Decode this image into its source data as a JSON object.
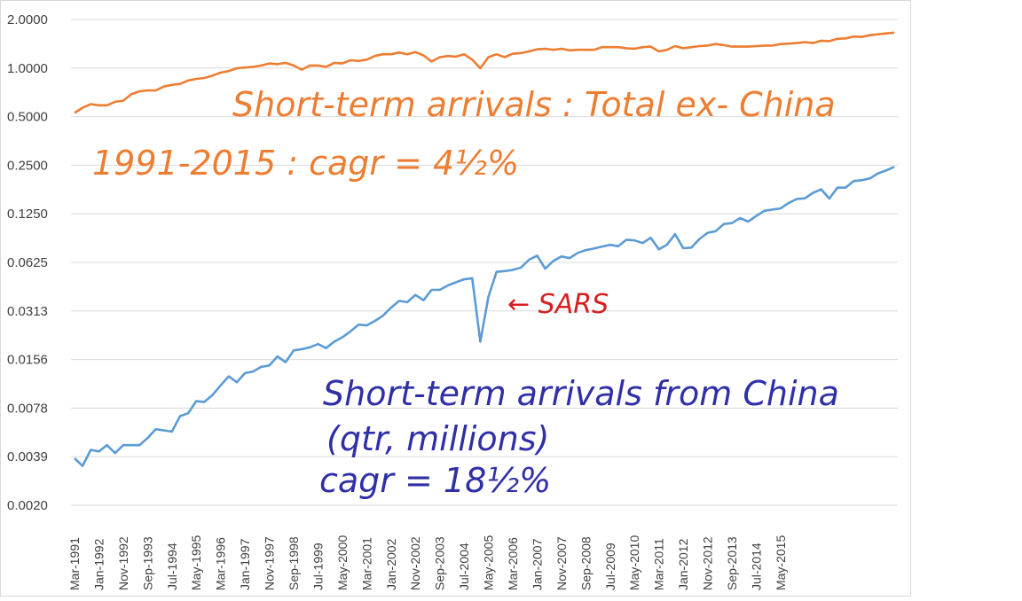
{
  "chart_data": {
    "type": "line",
    "y_scale": "log2",
    "ylim": [
      0.002,
      2.0
    ],
    "ytick_labels": [
      "2.0000",
      "1.0000",
      "0.5000",
      "0.2500",
      "0.1250",
      "0.0625",
      "0.0313",
      "0.0156",
      "0.0078",
      "0.0039",
      "0.0020"
    ],
    "xtick_labels": [
      "Mar-1991",
      "Jan-1992",
      "Nov-1992",
      "Sep-1993",
      "Jul-1994",
      "May-1995",
      "Mar-1996",
      "Jan-1997",
      "Nov-1997",
      "Sep-1998",
      "Jul-1999",
      "May-2000",
      "Mar-2001",
      "Jan-2002",
      "Nov-2002",
      "Sep-2003",
      "Jul-2004",
      "May-2005",
      "Mar-2006",
      "Jan-2007",
      "Nov-2007",
      "Sep-2008",
      "Jul-2009",
      "May-2010",
      "Mar-2011",
      "Jan-2012",
      "Nov-2012",
      "Sep-2013",
      "Jul-2014",
      "May-2015"
    ],
    "x_start": "Mar-1991",
    "x_frequency": "quarterly",
    "grid": true,
    "series": [
      {
        "color": "#ed7d31",
        "values": [
          0.53,
          0.57,
          0.6,
          0.59,
          0.59,
          0.62,
          0.63,
          0.69,
          0.72,
          0.73,
          0.73,
          0.77,
          0.79,
          0.8,
          0.84,
          0.86,
          0.87,
          0.9,
          0.94,
          0.96,
          1.0,
          1.01,
          1.02,
          1.04,
          1.07,
          1.06,
          1.08,
          1.04,
          0.98,
          1.04,
          1.04,
          1.02,
          1.08,
          1.07,
          1.12,
          1.11,
          1.13,
          1.19,
          1.22,
          1.22,
          1.25,
          1.22,
          1.26,
          1.2,
          1.1,
          1.17,
          1.19,
          1.18,
          1.22,
          1.13,
          1.0,
          1.17,
          1.22,
          1.17,
          1.23,
          1.24,
          1.27,
          1.31,
          1.32,
          1.3,
          1.32,
          1.29,
          1.3,
          1.3,
          1.3,
          1.35,
          1.35,
          1.35,
          1.33,
          1.32,
          1.35,
          1.36,
          1.27,
          1.3,
          1.37,
          1.33,
          1.35,
          1.37,
          1.38,
          1.41,
          1.39,
          1.36,
          1.36,
          1.36,
          1.37,
          1.38,
          1.38,
          1.41,
          1.42,
          1.43,
          1.45,
          1.43,
          1.48,
          1.47,
          1.52,
          1.53,
          1.57,
          1.56,
          1.6,
          1.62,
          1.64,
          1.66
        ]
      },
      {
        "color": "#5b9bd5",
        "values": [
          0.0039,
          0.0035,
          0.0044,
          0.0043,
          0.0047,
          0.0042,
          0.0047,
          0.0047,
          0.0047,
          0.0052,
          0.0059,
          0.0058,
          0.0057,
          0.0071,
          0.0074,
          0.0088,
          0.0087,
          0.0096,
          0.011,
          0.0125,
          0.0115,
          0.0131,
          0.0134,
          0.0143,
          0.0146,
          0.0166,
          0.0153,
          0.0181,
          0.0184,
          0.0189,
          0.0198,
          0.0187,
          0.0205,
          0.0218,
          0.0237,
          0.0261,
          0.0258,
          0.0275,
          0.0296,
          0.0332,
          0.0366,
          0.0359,
          0.0398,
          0.0369,
          0.0428,
          0.0428,
          0.0455,
          0.0477,
          0.0497,
          0.0505,
          0.0205,
          0.0389,
          0.0553,
          0.0559,
          0.0568,
          0.0587,
          0.0657,
          0.0696,
          0.0578,
          0.0646,
          0.0688,
          0.0672,
          0.0724,
          0.0754,
          0.077,
          0.0793,
          0.0812,
          0.0796,
          0.0873,
          0.0865,
          0.0832,
          0.0898,
          0.0762,
          0.0813,
          0.0944,
          0.0774,
          0.0781,
          0.0882,
          0.0963,
          0.0986,
          0.1091,
          0.1106,
          0.1188,
          0.1129,
          0.1224,
          0.1318,
          0.1341,
          0.1362,
          0.1473,
          0.1557,
          0.1573,
          0.1701,
          0.1787,
          0.1567,
          0.1831,
          0.1831,
          0.2013,
          0.2035,
          0.2089,
          0.2241,
          0.2337,
          0.2461
        ]
      }
    ],
    "annotations": [
      {
        "text": "Short-term arrivals : Total ex- China",
        "color": "#ed7d31"
      },
      {
        "text": "1991-2015 : cagr = 4½%",
        "color": "#ed7d31"
      },
      {
        "text": "Short-term arrivals from China",
        "color": "#2f2fa8"
      },
      {
        "text": "(qtr, millions)",
        "color": "#2f2fa8"
      },
      {
        "text": "cagr = 18½%",
        "color": "#2f2fa8"
      },
      {
        "text": "← SARS",
        "color": "#d42020"
      }
    ]
  }
}
